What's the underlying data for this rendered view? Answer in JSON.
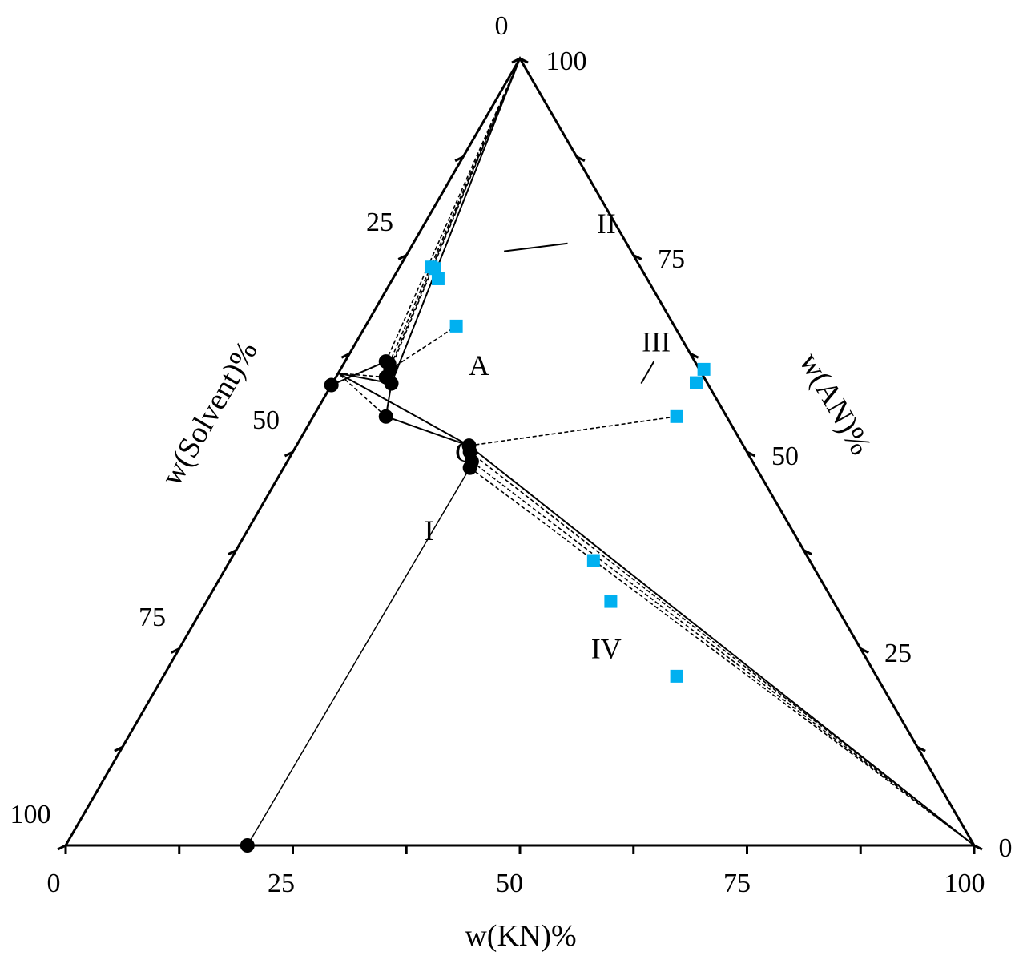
{
  "chart_data": {
    "type": "ternary",
    "axes": {
      "bottom": {
        "title": "w(KN)%",
        "ticks": [
          "0",
          "25",
          "50",
          "75",
          "100"
        ]
      },
      "left": {
        "title": "w(Solvent)%",
        "ticks": [
          "0",
          "25",
          "50",
          "75",
          "100"
        ]
      },
      "right": {
        "title": "w(AN)%",
        "ticks": [
          "0",
          "25",
          "50",
          "75",
          "100"
        ]
      }
    },
    "colors": {
      "liquid_points": "#000000",
      "solid_points": "#00b0f0",
      "lines": "#000000"
    },
    "region_labels": [
      {
        "id": "region-I",
        "text": "I",
        "KN": 20,
        "AN": 40
      },
      {
        "id": "region-II",
        "text": "II",
        "KN": 20,
        "AN": 79
      },
      {
        "id": "region-III",
        "text": "III",
        "KN": 33,
        "AN": 64
      },
      {
        "id": "region-IV",
        "text": "IV",
        "KN": 47,
        "AN": 25
      },
      {
        "id": "point-A",
        "text": "A",
        "KN": 15,
        "AN": 61
      },
      {
        "id": "point-G",
        "text": "G",
        "KN": 19,
        "AN": 50
      }
    ],
    "liquid_points": [
      {
        "KN": 0,
        "AN": 58.5
      },
      {
        "KN": 4.5,
        "AN": 61.5
      },
      {
        "KN": 5,
        "AN": 61.2
      },
      {
        "KN": 5.5,
        "AN": 60.5
      },
      {
        "KN": 5.5,
        "AN": 59.5
      },
      {
        "KN": 6.5,
        "AN": 58.7
      },
      {
        "KN": 8,
        "AN": 54.5
      },
      {
        "KN": 19,
        "AN": 50.8
      },
      {
        "KN": 19.5,
        "AN": 50.0
      },
      {
        "KN": 20.3,
        "AN": 48.8
      },
      {
        "KN": 20.5,
        "AN": 48.0
      },
      {
        "KN": 20,
        "AN": 0
      }
    ],
    "solid_points": [
      {
        "KN": 3.5,
        "AN": 73.5
      },
      {
        "KN": 4,
        "AN": 73.3
      },
      {
        "KN": 5,
        "AN": 72.0
      },
      {
        "KN": 10,
        "AN": 66.0
      },
      {
        "KN": 40,
        "AN": 60.5
      },
      {
        "KN": 40,
        "AN": 58.8
      },
      {
        "KN": 40,
        "AN": 54.5
      },
      {
        "KN": 40,
        "AN": 36.2
      },
      {
        "KN": 44.5,
        "AN": 31.0
      },
      {
        "KN": 56.5,
        "AN": 21.5
      }
    ],
    "solid_lines": [
      [
        {
          "KN": 0,
          "AN": 58.5
        },
        {
          "KN": 4.5,
          "AN": 61.5
        },
        {
          "KN": 5,
          "AN": 61.2
        },
        {
          "KN": 5.5,
          "AN": 60.5
        },
        {
          "KN": 5.5,
          "AN": 59.5
        },
        {
          "KN": 6.5,
          "AN": 58.7
        },
        {
          "KN": 8,
          "AN": 54.5
        },
        {
          "KN": 19,
          "AN": 50.8
        },
        {
          "KN": 19.5,
          "AN": 50.0
        },
        {
          "KN": 20.3,
          "AN": 48.8
        },
        {
          "KN": 20.5,
          "AN": 48.0
        }
      ],
      [
        {
          "KN": 20.5,
          "AN": 48.0
        },
        {
          "KN": 20,
          "AN": 0
        }
      ],
      [
        {
          "KN": 6.5,
          "AN": 58.7
        },
        {
          "KN": 0,
          "AN": 100
        }
      ],
      [
        {
          "KN": 6.5,
          "AN": 58.7
        },
        {
          "KN": 0,
          "AN": 60
        }
      ],
      [
        {
          "KN": 19,
          "AN": 50.8
        },
        {
          "KN": 0,
          "AN": 60
        }
      ],
      [
        {
          "KN": 19,
          "AN": 50.8
        },
        {
          "KN": 100,
          "AN": 0
        }
      ],
      [
        {
          "KN": 10.5,
          "AN": 75.5
        },
        {
          "KN": 17,
          "AN": 76.5
        }
      ],
      [
        {
          "KN": 34,
          "AN": 58.7
        },
        {
          "KN": 34,
          "AN": 61.5
        }
      ]
    ],
    "tie_lines": [
      [
        {
          "KN": 4.5,
          "AN": 61.5
        },
        {
          "KN": 0,
          "AN": 100
        }
      ],
      [
        {
          "KN": 5,
          "AN": 61.2
        },
        {
          "KN": 0,
          "AN": 100
        }
      ],
      [
        {
          "KN": 5.5,
          "AN": 60.5
        },
        {
          "KN": 0,
          "AN": 100
        }
      ],
      [
        {
          "KN": 5.5,
          "AN": 59.5
        },
        {
          "KN": 0,
          "AN": 100
        }
      ],
      [
        {
          "KN": 5.5,
          "AN": 60.5
        },
        {
          "KN": 10,
          "AN": 66.0
        }
      ],
      [
        {
          "KN": 6.5,
          "AN": 58.7
        },
        {
          "KN": 0,
          "AN": 60
        }
      ],
      [
        {
          "KN": 5.5,
          "AN": 59.5
        },
        {
          "KN": 0,
          "AN": 60
        }
      ],
      [
        {
          "KN": 8,
          "AN": 54.5
        },
        {
          "KN": 0,
          "AN": 60
        }
      ],
      [
        {
          "KN": 19,
          "AN": 50.8
        },
        {
          "KN": 40,
          "AN": 54.5
        }
      ],
      [
        {
          "KN": 19.5,
          "AN": 50.0
        },
        {
          "KN": 100,
          "AN": 0
        }
      ],
      [
        {
          "KN": 20.3,
          "AN": 48.8
        },
        {
          "KN": 100,
          "AN": 0
        }
      ],
      [
        {
          "KN": 20.5,
          "AN": 48.0
        },
        {
          "KN": 100,
          "AN": 0
        }
      ]
    ]
  }
}
